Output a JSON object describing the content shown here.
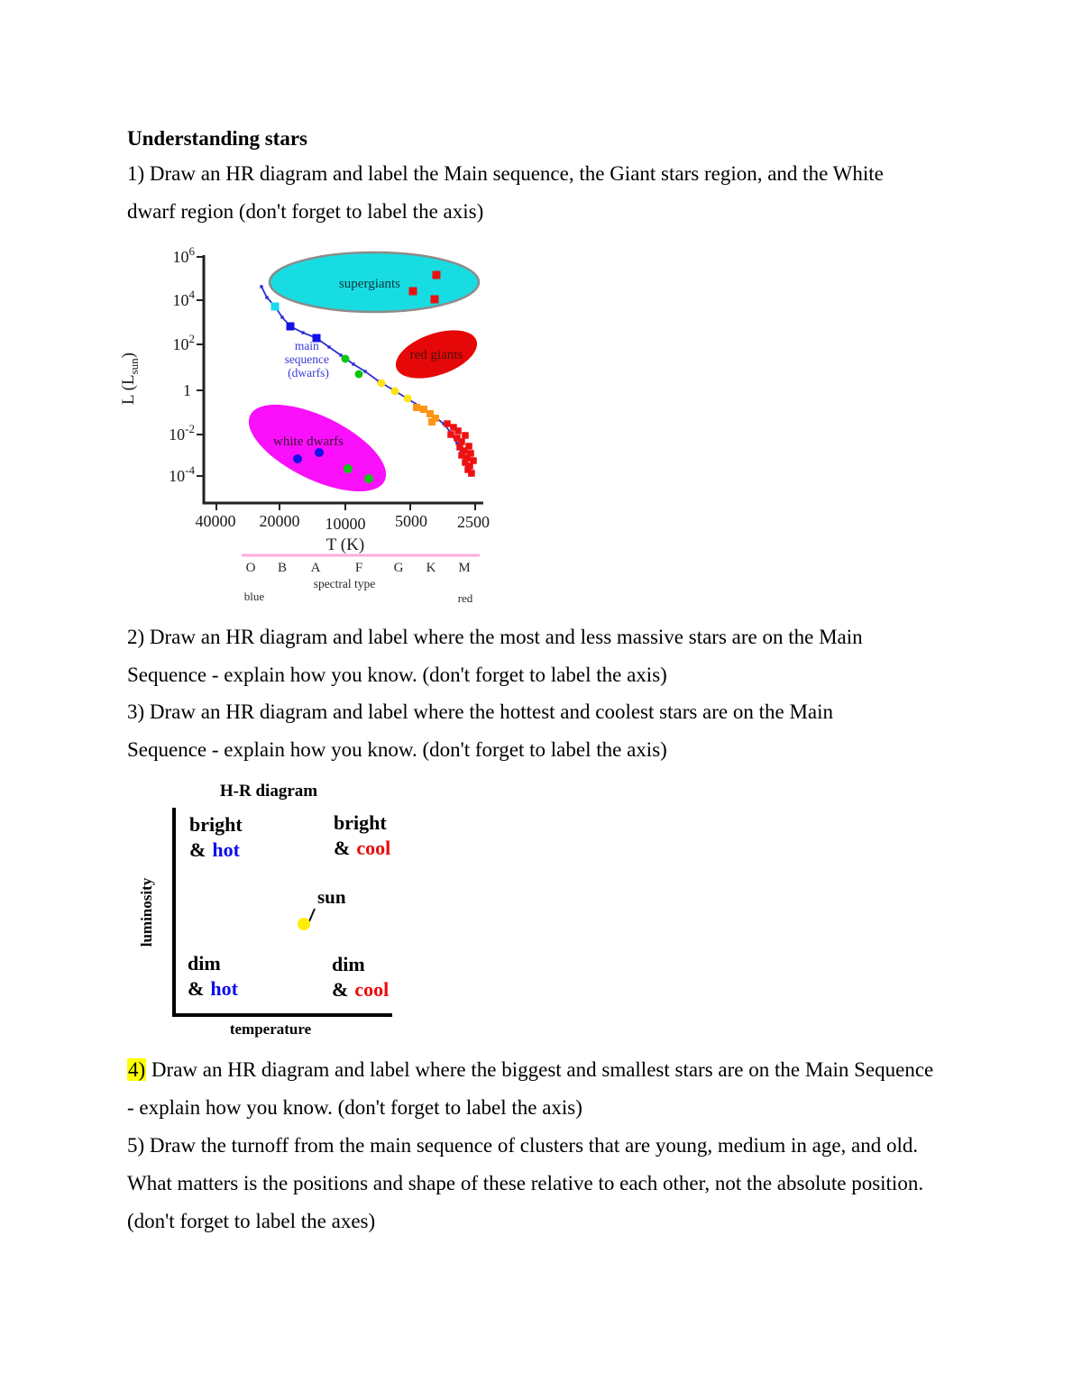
{
  "document": {
    "title": "Understanding stars",
    "q1": {
      "lines": [
        "1) Draw an HR diagram and label the Main sequence, the Giant stars region, and the White",
        "dwarf region (don't forget to label the axis)"
      ]
    },
    "q2": {
      "lines": [
        "2) Draw an HR diagram and label where the most and less massive stars are on the Main",
        "Sequence - explain how you know. (don't forget to label the axis)"
      ]
    },
    "q3": {
      "lines": [
        "3) Draw an HR diagram and label where the hottest and coolest stars are on the Main",
        "Sequence - explain how you know. (don't forget to label the axis)"
      ]
    },
    "q4": {
      "highlight": "4)",
      "line1_rest": " Draw an HR diagram and label where the biggest and smallest stars are on the Main Sequence",
      "line2": "- explain how you know. (don't forget to label the axis)"
    },
    "q5": {
      "lines": [
        "5) Draw the turnoff from the main sequence of clusters that are young, medium in age, and old.",
        "What matters is the positions and shape of these relative to each other, not the absolute position.",
        "(don't forget to label the axes)"
      ]
    }
  },
  "chart_data": [
    {
      "id": "hr-diagram-detailed",
      "type": "scatter",
      "ylabel": {
        "prefix": "L (L",
        "sub": "sun",
        "suffix": ")"
      },
      "xlabel": "T (K)",
      "x_ticks": [
        "40000",
        "20000",
        "10000",
        "5000",
        "2500"
      ],
      "y_ticks": [
        {
          "b": "10",
          "e": "6"
        },
        {
          "b": "10",
          "e": "4"
        },
        {
          "b": "10",
          "e": "2"
        },
        {
          "b": "1",
          "e": ""
        },
        {
          "b": "10",
          "e": "-2"
        },
        {
          "b": "10",
          "e": "-4"
        }
      ],
      "x_scale": "log, reversed (hot left, cool right)",
      "y_scale": "log, 10^-4 to 10^6 L_sun",
      "spectral": {
        "types": [
          "O",
          "B",
          "A",
          "F",
          "G",
          "K",
          "M"
        ],
        "label": "spectral type",
        "left_note": "blue",
        "right_note": "red"
      },
      "regions": {
        "supergiants": {
          "label": "supergiants",
          "fill": "#17dde2",
          "approx": "T 20000-2500 K, L 10^4-10^6"
        },
        "red_giants": {
          "label": "red giants",
          "fill": "#e60808",
          "approx": "T 5000-3000 K, L 10-10^3"
        },
        "white_dwarfs": {
          "label": "white dwarfs",
          "fill": "#fa10fa",
          "approx": "T 20000-7000 K, L 10^-4-10^-2"
        },
        "main_sequence": {
          "lines": [
            "main",
            "sequence",
            "(dwarfs)"
          ],
          "approx": "from T 30000 K, L 10^5 down to T 2500 K, L 10^-4"
        }
      },
      "colors": {
        "ms_line": "#2d2dd2",
        "cyan": "#1ad9ec",
        "blue": "#1212e8",
        "green": "#0fc60f",
        "yellow": "#ffe414",
        "orange": "#ff9414",
        "red": "#ee1010"
      },
      "ms_path": [
        [
          170,
          48
        ],
        [
          176,
          60
        ],
        [
          185,
          70
        ],
        [
          193,
          82
        ],
        [
          202,
          92
        ],
        [
          216,
          99
        ],
        [
          231,
          105
        ],
        [
          245,
          115
        ],
        [
          258,
          124
        ],
        [
          272,
          134
        ],
        [
          285,
          142
        ],
        [
          300,
          153
        ],
        [
          317,
          163
        ],
        [
          333,
          173
        ],
        [
          348,
          182
        ],
        [
          362,
          192
        ],
        [
          372,
          200
        ],
        [
          380,
          210
        ],
        [
          387,
          222
        ],
        [
          393,
          235
        ],
        [
          398,
          247
        ],
        [
          401,
          257
        ]
      ],
      "points": {
        "cyan_ms": [
          [
            185,
            70
          ]
        ],
        "blue_ms": [
          [
            202,
            92
          ],
          [
            231,
            105
          ]
        ],
        "green_ms": [
          [
            263,
            128
          ],
          [
            278,
            145
          ]
        ],
        "yellow_ms": [
          [
            303,
            155
          ],
          [
            318,
            164
          ],
          [
            332,
            172
          ]
        ],
        "orange_ms": [
          [
            342,
            182
          ],
          [
            350,
            184
          ],
          [
            357,
            189
          ],
          [
            363,
            194
          ],
          [
            359,
            198
          ]
        ],
        "red_ms": [
          [
            376,
            200
          ],
          [
            383,
            204
          ],
          [
            388,
            208
          ],
          [
            380,
            212
          ],
          [
            387,
            216
          ],
          [
            392,
            220
          ],
          [
            396,
            213
          ],
          [
            390,
            226
          ],
          [
            395,
            230
          ],
          [
            400,
            225
          ],
          [
            392,
            235
          ],
          [
            398,
            238
          ],
          [
            402,
            233
          ],
          [
            396,
            243
          ],
          [
            401,
            247
          ],
          [
            405,
            241
          ],
          [
            399,
            251
          ],
          [
            403,
            255
          ]
        ],
        "red_supergiants": [
          [
            364,
            35
          ],
          [
            338,
            53
          ],
          [
            362,
            62
          ]
        ],
        "blue_white_dwarfs": [
          [
            210,
            239
          ],
          [
            234,
            232
          ]
        ],
        "green_white_dwarfs": [
          [
            266,
            250
          ],
          [
            289,
            261
          ]
        ]
      }
    },
    {
      "id": "hr-diagram-sketch",
      "type": "annotated-axes",
      "title": "H-R diagram",
      "xlabel": "temperature",
      "ylabel": "luminosity",
      "quadrants": {
        "tl": {
          "l1": "bright",
          "amp": "&",
          "w": "hot"
        },
        "tr": {
          "l1": "bright",
          "amp": "&",
          "w": "cool"
        },
        "bl": {
          "l1": "dim",
          "amp": "&",
          "w": "hot"
        },
        "br": {
          "l1": "dim",
          "amp": "&",
          "w": "cool"
        }
      },
      "sun_label": "sun",
      "colors": {
        "hot": "#0b0bee",
        "cool": "#ee0b0b",
        "sun": "#ffec07"
      }
    }
  ]
}
